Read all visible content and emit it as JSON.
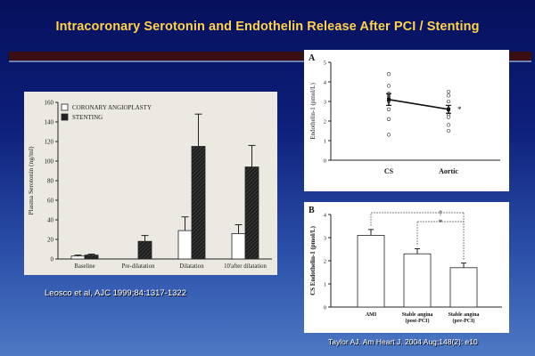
{
  "slide": {
    "title": "Intracoronary Serotonin and Endothelin Release After PCI / Stenting",
    "citation_left": "Leosco et al, AJC 1999;84:1317-1322",
    "citation_right": "Taylor AJ. Am Heart J. 2004 Aug;148(2): e10"
  },
  "colors": {
    "title": "#ffd24a",
    "background_top": "#06105c",
    "background_bottom": "#4d79c4",
    "stripe": "#3a0f14"
  },
  "chart_data": [
    {
      "type": "bar",
      "ylabel": "Plasma Serotonin (ng/ml)",
      "ylim": [
        0,
        160
      ],
      "yticks": [
        0,
        20,
        40,
        60,
        80,
        100,
        120,
        140,
        160
      ],
      "categories": [
        "Baseline",
        "Pre-dilatation",
        "Dilatation",
        "10'after dilatation"
      ],
      "legend": {
        "placement": "top-left"
      },
      "series": [
        {
          "name": "CORONARY ANGIOPLASTY",
          "fill": "white",
          "values": [
            3,
            null,
            29,
            26
          ],
          "errors": [
            1,
            null,
            14,
            9
          ]
        },
        {
          "name": "STENTING",
          "fill": "hatched",
          "values": [
            4,
            18,
            115,
            94
          ],
          "errors": [
            1,
            6,
            33,
            22
          ]
        }
      ]
    },
    {
      "type": "scatter",
      "panel_label": "A",
      "ylabel": "Endothelin-1 (pmol/L)",
      "ylim": [
        0,
        5
      ],
      "yticks": [
        0,
        1,
        2,
        3,
        4,
        5
      ],
      "categories": [
        "CS",
        "Aortic"
      ],
      "means": [
        3.1,
        2.6
      ],
      "errors": [
        0.3,
        0.2
      ],
      "points": [
        [
          4.4,
          3.8,
          3.4,
          3.3,
          3.2,
          3.0,
          2.6,
          2.1,
          1.3
        ],
        [
          3.5,
          3.3,
          3.0,
          2.6,
          2.3,
          2.2,
          1.8,
          1.5
        ]
      ],
      "annotation": "*"
    },
    {
      "type": "bar",
      "panel_label": "B",
      "ylabel": "CS Endothelin-1 (pmol/L)",
      "ylim": [
        0,
        4
      ],
      "yticks": [
        0,
        1,
        2,
        3,
        4
      ],
      "categories": [
        "AMI",
        "Stable angina (post-PCI)",
        "Stable angina (pre-PCI)"
      ],
      "category_lines": [
        [
          "AMI"
        ],
        [
          "Stable angina",
          "(post-PCI)"
        ],
        [
          "Stable angina",
          "(pre-PCI)"
        ]
      ],
      "values": [
        3.1,
        2.3,
        1.7
      ],
      "errors": [
        0.25,
        0.22,
        0.2
      ],
      "annotations": [
        "†",
        "*"
      ]
    }
  ]
}
